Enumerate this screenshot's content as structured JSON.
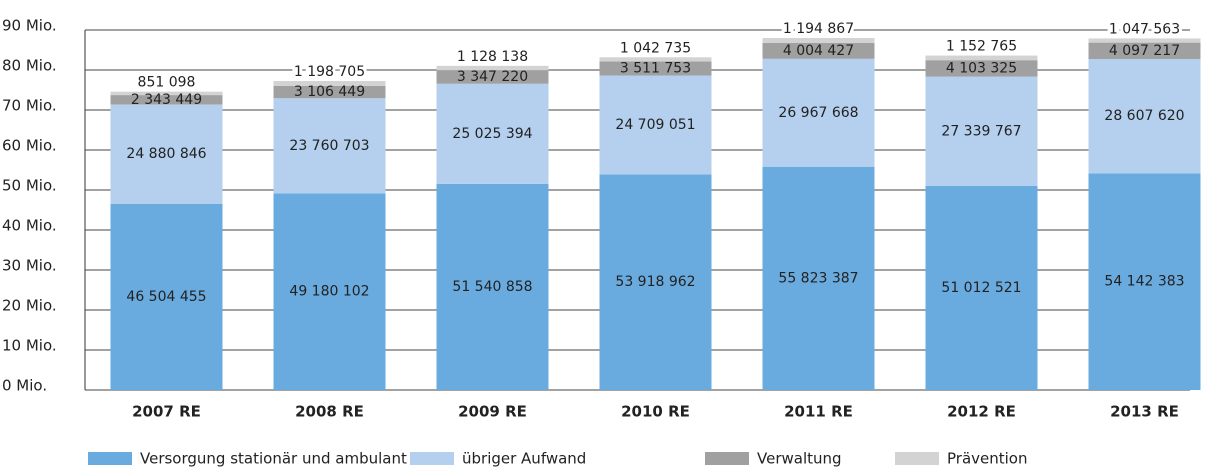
{
  "chart_data": {
    "type": "stacked_bar",
    "categories": [
      "2007 RE",
      "2008 RE",
      "2009 RE",
      "2010 RE",
      "2011 RE",
      "2012 RE",
      "2013 RE"
    ],
    "series": [
      {
        "name": "Versorgung stationär und ambulant",
        "color": "#6aabdf",
        "values": [
          46504455,
          49180102,
          51540858,
          53918962,
          55823387,
          51012521,
          54142383
        ],
        "value_labels": [
          "46 504 455",
          "49 180 102",
          "51 540 858",
          "53 918 962",
          "55 823 387",
          "51 012 521",
          "54 142 383"
        ]
      },
      {
        "name": "übriger Aufwand",
        "color": "#b4d0ee",
        "values": [
          24880846,
          23760703,
          25025394,
          24709051,
          26967668,
          27339767,
          28607620
        ],
        "value_labels": [
          "24 880 846",
          "23 760 703",
          "25 025 394",
          "24 709 051",
          "26 967 668",
          "27 339 767",
          "28 607 620"
        ]
      },
      {
        "name": "Verwaltung",
        "color": "#a0a0a0",
        "values": [
          2343449,
          3106449,
          3347220,
          3511753,
          4004427,
          4103325,
          4097217
        ],
        "value_labels": [
          "2 343 449",
          "3 106 449",
          "3 347 220",
          "3 511 753",
          "4 004 427",
          "4 103 325",
          "4 097 217"
        ]
      },
      {
        "name": "Prävention",
        "color": "#d3d3d3",
        "values": [
          851098,
          1198705,
          1128138,
          1042735,
          1194867,
          1152765,
          1047563
        ],
        "value_labels": [
          "851 098",
          "1 198 705",
          "1 128 138",
          "1 042 735",
          "1 194 867",
          "1 152 765",
          "1 047 563"
        ]
      }
    ],
    "ylim": [
      0,
      90000000
    ],
    "yticks": [
      {
        "value": 0,
        "label": "0 Mio."
      },
      {
        "value": 10000000,
        "label": "10 Mio."
      },
      {
        "value": 20000000,
        "label": "20 Mio."
      },
      {
        "value": 30000000,
        "label": "30 Mio."
      },
      {
        "value": 40000000,
        "label": "40 Mio."
      },
      {
        "value": 50000000,
        "label": "50 Mio."
      },
      {
        "value": 60000000,
        "label": "60 Mio."
      },
      {
        "value": 70000000,
        "label": "70 Mio."
      },
      {
        "value": 80000000,
        "label": "80 Mio."
      },
      {
        "value": 90000000,
        "label": "90 Mio."
      }
    ],
    "grid": true,
    "legend": "bottom"
  }
}
